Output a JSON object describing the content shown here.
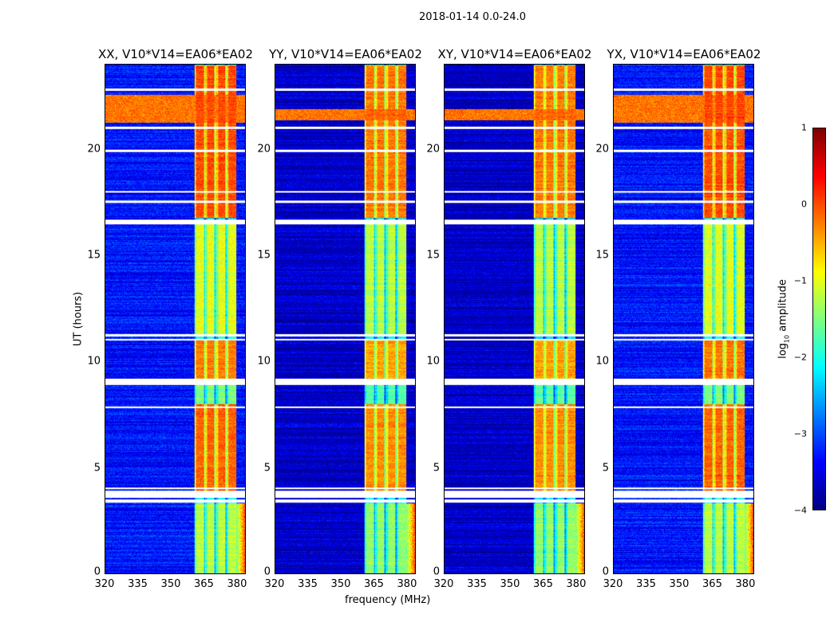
{
  "figure_title": "2018-01-14 0.0-24.0",
  "chart_data": {
    "type": "heatmap",
    "title": "2018-01-14 0.0-24.0",
    "xlabel": "frequency (MHz)",
    "ylabel": "UT (hours)",
    "xlim": [
      320,
      384
    ],
    "ylim": [
      0,
      24
    ],
    "xticks": [
      "320",
      "335",
      "350",
      "365",
      "380"
    ],
    "yticks": [
      "0",
      "5",
      "10",
      "15",
      "20"
    ],
    "panels": [
      {
        "title": "XX, V10*V14=EA06*EA02",
        "rfi_band_hours": [
          21.3,
          22.6
        ]
      },
      {
        "title": "YY, V10*V14=EA06*EA02",
        "rfi_band_hours": [
          21.4,
          21.9
        ]
      },
      {
        "title": "XY, V10*V14=EA06*EA02",
        "rfi_band_hours": [
          21.4,
          21.9
        ]
      },
      {
        "title": "YX, V10*V14=EA06*EA02",
        "rfi_band_hours": [
          21.3,
          22.6
        ]
      }
    ],
    "signal_band_mhz": [
      360.5,
      380
    ],
    "subband_gaps_mhz": [
      365.2,
      370.2,
      375.2
    ],
    "background_log10": -3.3,
    "time_segments": [
      {
        "hours": [
          0,
          3.3
        ],
        "band_log10": -1.2
      },
      {
        "hours": [
          3.9,
          8.0
        ],
        "band_log10": -0.1
      },
      {
        "hours": [
          8.0,
          9.0
        ],
        "band_log10": -1.5
      },
      {
        "hours": [
          9.2,
          11.0
        ],
        "band_log10": -0.2
      },
      {
        "hours": [
          11.3,
          16.5
        ],
        "band_log10": -1.0
      },
      {
        "hours": [
          16.8,
          24.0
        ],
        "band_log10": 0.0
      }
    ],
    "flagged_hours": [
      [
        3.35,
        3.5
      ],
      [
        3.6,
        3.9
      ],
      [
        4.0,
        4.05
      ],
      [
        7.8,
        7.9
      ],
      [
        8.9,
        9.2
      ],
      [
        11.0,
        11.1
      ],
      [
        11.2,
        11.3
      ],
      [
        16.5,
        16.7
      ],
      [
        17.5,
        17.6
      ],
      [
        18.0,
        18.05
      ],
      [
        19.9,
        20.0
      ],
      [
        21.0,
        21.1
      ],
      [
        22.8,
        22.9
      ]
    ],
    "colorbar": {
      "label": "log10 amplitude",
      "label_main": "log",
      "label_sub": "10",
      "label_rest": " amplitude",
      "range": [
        -4,
        1
      ],
      "ticks": [
        "1",
        "0",
        "−1",
        "−2",
        "−3",
        "−4"
      ],
      "colormap": "jet"
    }
  }
}
